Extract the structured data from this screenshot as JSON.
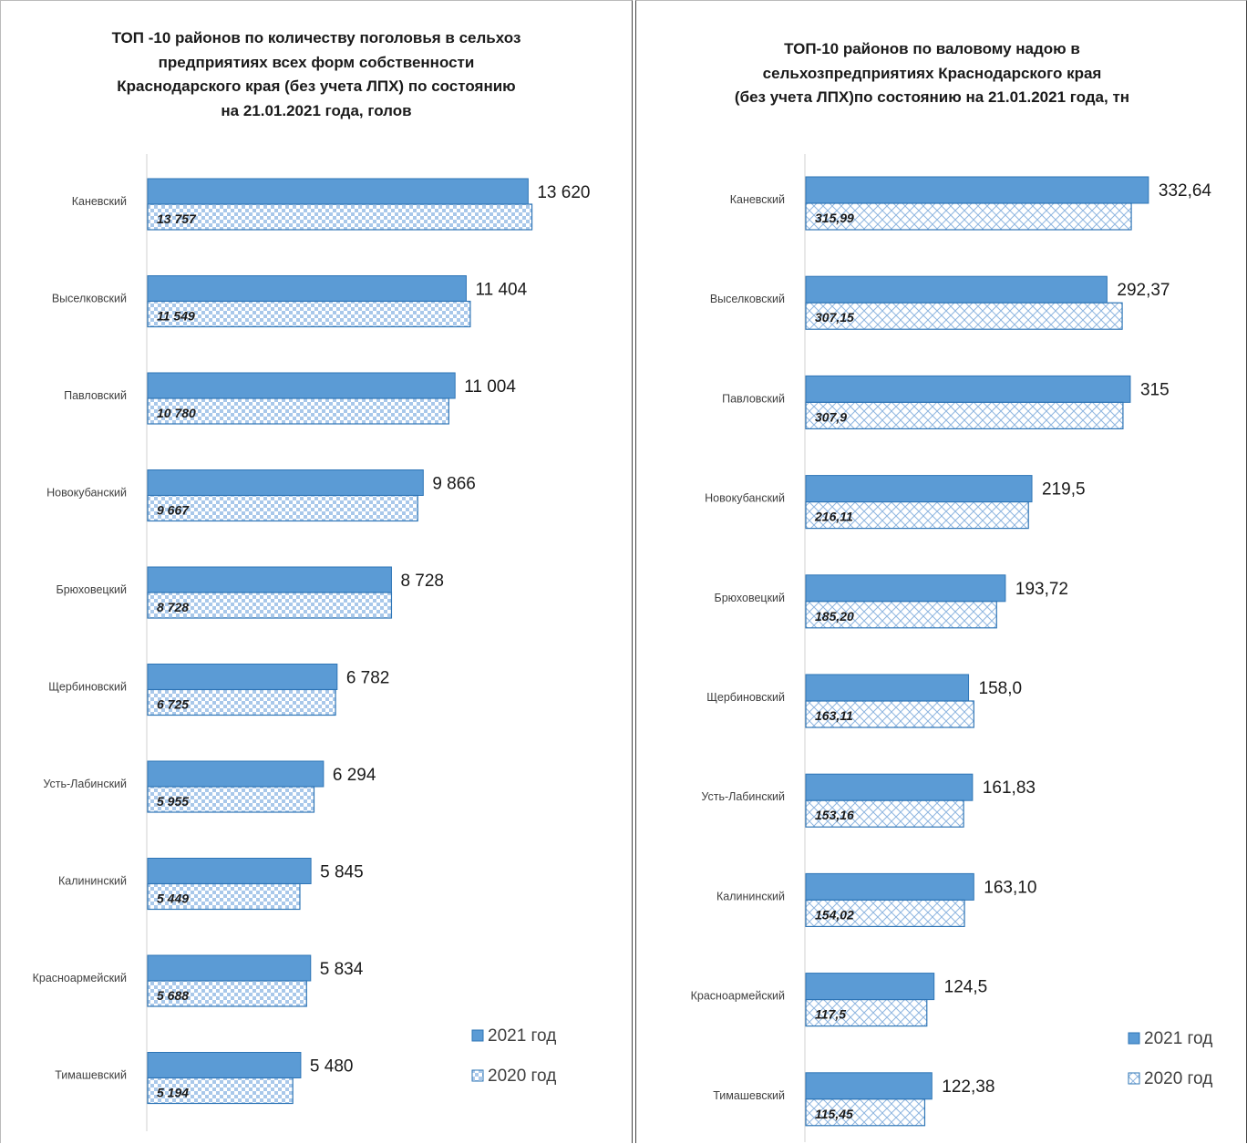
{
  "chart_data": [
    {
      "type": "bar",
      "orientation": "horizontal",
      "title": "ТОП -10 районов по количеству поголовья в сельхоз\nпредприятиях всех форм собственности\nКраснодарского края (без учета ЛПХ) по состоянию\nна 21.01.2021 года, голов",
      "categories": [
        "Каневский",
        "Выселковский",
        "Павловский",
        "Новокубанский",
        "Брюховецкий",
        "Щербиновский",
        "Усть-Лабинский",
        "Калининский",
        "Красноармейский",
        "Тимашевский"
      ],
      "series": [
        {
          "name": "2021 год",
          "values": [
            13620,
            11404,
            11004,
            9866,
            8728,
            6782,
            6294,
            5845,
            5834,
            5480
          ],
          "labels": [
            "13 620",
            "11 404",
            "11 004",
            "9 866",
            "8 728",
            "6 782",
            "6 294",
            "5 845",
            "5 834",
            "5 480"
          ],
          "color": "#5b9bd5",
          "pattern": "solid"
        },
        {
          "name": "2020 год",
          "values": [
            13757,
            11549,
            10780,
            9667,
            8728,
            6725,
            5955,
            5449,
            5688,
            5194
          ],
          "labels": [
            "13 757",
            "11 549",
            "10 780",
            "9 667",
            "8 728",
            "6 725",
            "5 955",
            "5 449",
            "5 688",
            "5 194"
          ],
          "color": "#5b9bd5",
          "pattern": "checker"
        }
      ],
      "xlim": [
        0,
        14000
      ],
      "grid": false,
      "legend_position": "bottom-right"
    },
    {
      "type": "bar",
      "orientation": "horizontal",
      "title": "ТОП-10 районов по валовому надою в\nсельхозпредприятиях Краснодарского края\n(без учета ЛПХ)по состоянию на 21.01.2021 года, тн",
      "categories": [
        "Каневский",
        "Выселковский",
        "Павловский",
        "Новокубанский",
        "Брюховецкий",
        "Щербиновский",
        "Усть-Лабинский",
        "Калининский",
        "Красноармейский",
        "Тимашевский"
      ],
      "series": [
        {
          "name": "2021 год",
          "values": [
            332.64,
            292.37,
            315,
            219.5,
            193.72,
            158.0,
            161.83,
            163.1,
            124.5,
            122.38
          ],
          "labels": [
            "332,64",
            "292,37",
            "315",
            "219,5",
            "193,72",
            "158,0",
            "161,83",
            "163,10",
            "124,5",
            "122,38"
          ],
          "color": "#5b9bd5",
          "pattern": "solid"
        },
        {
          "name": "2020 год",
          "values": [
            315.99,
            307.15,
            307.9,
            216.11,
            185.2,
            163.11,
            153.16,
            154.02,
            117.5,
            115.45
          ],
          "labels": [
            "315,99",
            "307,15",
            "307,9",
            "216,11",
            "185,20",
            "163,11",
            "153,16",
            "154,02",
            "117,5",
            "115,45"
          ],
          "color": "#5b9bd5",
          "pattern": "crosshatch"
        }
      ],
      "xlim": [
        0,
        350
      ],
      "grid": false,
      "legend_position": "bottom-right"
    }
  ]
}
